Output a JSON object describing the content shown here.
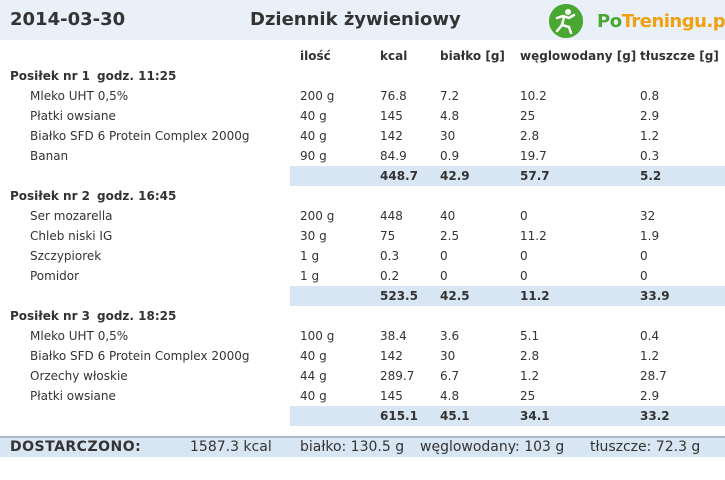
{
  "header": {
    "date": "2014-03-30",
    "title": "Dziennik żywieniowy",
    "logo": {
      "text_po": "Po",
      "text_rest": "Treningu.pl",
      "icon": "runner-icon",
      "colors": {
        "green": "#4aa832",
        "orange": "#f0a010"
      }
    }
  },
  "columns": {
    "qty": "ilość",
    "kcal": "kcal",
    "protein": "białko [g]",
    "carbs": "węglowodany [g]",
    "fat": "tłuszcze [g]"
  },
  "meals": [
    {
      "title": "Posiłek nr 1",
      "time": "godz. 11:25",
      "items": [
        {
          "name": "Mleko UHT 0,5%",
          "qty": "200 g",
          "kcal": "76.8",
          "protein": "7.2",
          "carbs": "10.2",
          "fat": "0.8"
        },
        {
          "name": "Płatki owsiane",
          "qty": "40 g",
          "kcal": "145",
          "protein": "4.8",
          "carbs": "25",
          "fat": "2.9"
        },
        {
          "name": "Białko SFD 6 Protein Complex 2000g",
          "qty": "40 g",
          "kcal": "142",
          "protein": "30",
          "carbs": "2.8",
          "fat": "1.2"
        },
        {
          "name": "Banan",
          "qty": "90 g",
          "kcal": "84.9",
          "protein": "0.9",
          "carbs": "19.7",
          "fat": "0.3"
        }
      ],
      "total": {
        "kcal": "448.7",
        "protein": "42.9",
        "carbs": "57.7",
        "fat": "5.2"
      }
    },
    {
      "title": "Posiłek nr 2",
      "time": "godz. 16:45",
      "items": [
        {
          "name": "Ser mozarella",
          "qty": "200 g",
          "kcal": "448",
          "protein": "40",
          "carbs": "0",
          "fat": "32"
        },
        {
          "name": "Chleb niski IG",
          "qty": "30 g",
          "kcal": "75",
          "protein": "2.5",
          "carbs": "11.2",
          "fat": "1.9"
        },
        {
          "name": "Szczypiorek",
          "qty": "1 g",
          "kcal": "0.3",
          "protein": "0",
          "carbs": "0",
          "fat": "0"
        },
        {
          "name": "Pomidor",
          "qty": "1 g",
          "kcal": "0.2",
          "protein": "0",
          "carbs": "0",
          "fat": "0"
        }
      ],
      "total": {
        "kcal": "523.5",
        "protein": "42.5",
        "carbs": "11.2",
        "fat": "33.9"
      }
    },
    {
      "title": "Posiłek nr 3",
      "time": "godz. 18:25",
      "items": [
        {
          "name": "Mleko UHT 0,5%",
          "qty": "100 g",
          "kcal": "38.4",
          "protein": "3.6",
          "carbs": "5.1",
          "fat": "0.4"
        },
        {
          "name": "Białko SFD 6 Protein Complex 2000g",
          "qty": "40 g",
          "kcal": "142",
          "protein": "30",
          "carbs": "2.8",
          "fat": "1.2"
        },
        {
          "name": "Orzechy włoskie",
          "qty": "44 g",
          "kcal": "289.7",
          "protein": "6.7",
          "carbs": "1.2",
          "fat": "28.7"
        },
        {
          "name": "Płatki owsiane",
          "qty": "40 g",
          "kcal": "145",
          "protein": "4.8",
          "carbs": "25",
          "fat": "2.9"
        }
      ],
      "total": {
        "kcal": "615.1",
        "protein": "45.1",
        "carbs": "34.1",
        "fat": "33.2"
      }
    }
  ],
  "footer": {
    "label": "DOSTARCZONO:",
    "kcal": "1587.3 kcal",
    "protein": "białko: 130.5 g",
    "carbs": "węglowodany: 103 g",
    "fat": "tłuszcze: 72.3 g"
  },
  "colors": {
    "header_bg": "#e9f0f8",
    "total_band": "#d8e6f4",
    "text": "#333333"
  }
}
